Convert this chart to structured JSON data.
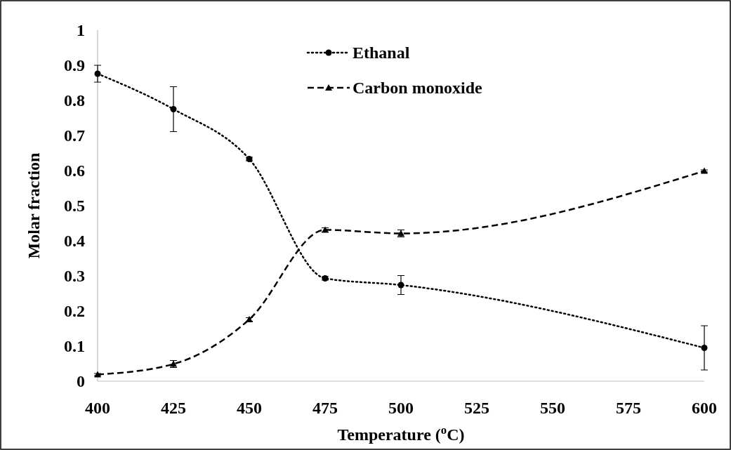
{
  "chart_data": {
    "type": "line",
    "xlabel": "Temperature ($^{o}$C)",
    "ylabel": "Molar fraction",
    "x": [
      400,
      425,
      450,
      475,
      500,
      600
    ],
    "xlim": [
      400,
      600
    ],
    "xticks": [
      400,
      425,
      450,
      475,
      500,
      525,
      550,
      575,
      600
    ],
    "ylim": [
      0,
      1
    ],
    "yticks": [
      0,
      0.1,
      0.2,
      0.3,
      0.4,
      0.5,
      0.6,
      0.7,
      0.8,
      0.9,
      1
    ],
    "grid": false,
    "legend": "top right",
    "series": [
      {
        "name": "Ethanal",
        "color": "#000000",
        "marker": "circle",
        "line_style": "dotted",
        "values": [
          0.876,
          0.775,
          0.633,
          0.293,
          0.274,
          0.095
        ],
        "errors": [
          0.024,
          0.064,
          0.005,
          0.005,
          0.027,
          0.063
        ]
      },
      {
        "name": "Carbon monoxide",
        "color": "#000000",
        "marker": "triangle",
        "line_style": "dashed",
        "values": [
          0.019,
          0.049,
          0.176,
          0.431,
          0.421,
          0.599
        ],
        "errors": [
          0.003,
          0.01,
          0.005,
          0.006,
          0.01,
          0.003
        ]
      }
    ]
  }
}
